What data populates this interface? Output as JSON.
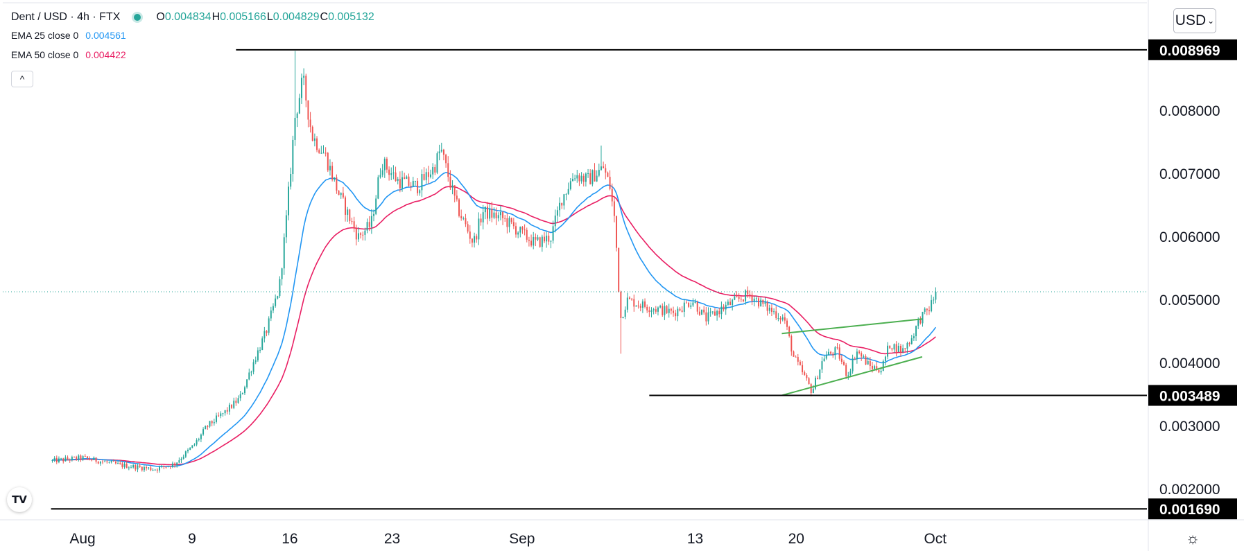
{
  "legend": {
    "symbol": "Dent / USD · 4h · FTX",
    "open_label": "O",
    "open": "0.004834",
    "high_label": "H",
    "high": "0.005166",
    "low_label": "L",
    "low": "0.004829",
    "close_label": "C",
    "close": "0.005132",
    "ema25_label": "EMA 25 close 0",
    "ema25_value": "0.004561",
    "ema50_label": "EMA 50 close 0",
    "ema50_value": "0.004422"
  },
  "toolbar": {
    "currency": "USD",
    "collapse_icon": "chevron-up-icon",
    "settings_icon": "gear-icon",
    "logo": "tradingview-logo"
  },
  "colors": {
    "up": "#26a69a",
    "down": "#ef5350",
    "ema25": "#2196f3",
    "ema50": "#e91e63",
    "trendline": "#4caf50",
    "level": "#000000"
  },
  "chart_data": {
    "type": "candlestick",
    "ylim": [
      0.0014,
      0.0097
    ],
    "y_ticks": [
      "0.008000",
      "0.007000",
      "0.006000",
      "0.005000",
      "0.004000",
      "0.003000",
      "0.002000"
    ],
    "x_ticks": [
      "Aug",
      "9",
      "16",
      "23",
      "Sep",
      "13",
      "20",
      "Oct"
    ],
    "last_price": 0.005132,
    "levels": [
      {
        "label": "0.008969",
        "value": 0.008969,
        "from_day": 11.7
      },
      {
        "label": "0.003489",
        "value": 0.003489,
        "from_day": 43.2
      },
      {
        "label": "0.001690",
        "value": 0.00169,
        "from_day": -2.4
      }
    ],
    "trendlines": [
      {
        "from": [
          53.3,
          0.00447
        ],
        "to": [
          64,
          0.0047
        ]
      },
      {
        "from": [
          53.3,
          0.003489
        ],
        "to": [
          64,
          0.0041
        ]
      }
    ],
    "anchors": [
      [
        -2.3,
        0.00245
      ],
      [
        0,
        0.0025
      ],
      [
        3,
        0.00238
      ],
      [
        5.5,
        0.00232
      ],
      [
        7,
        0.0024
      ],
      [
        8.5,
        0.0027
      ],
      [
        9.5,
        0.003
      ],
      [
        11,
        0.00325
      ],
      [
        12,
        0.00345
      ],
      [
        13,
        0.004
      ],
      [
        14,
        0.0045
      ],
      [
        15,
        0.0052
      ],
      [
        15.5,
        0.0062
      ],
      [
        16.2,
        0.0079
      ],
      [
        16.8,
        0.0085
      ],
      [
        17.5,
        0.0076
      ],
      [
        18.5,
        0.0073
      ],
      [
        19.5,
        0.0067
      ],
      [
        21,
        0.006
      ],
      [
        22,
        0.0062
      ],
      [
        22.8,
        0.0072
      ],
      [
        24,
        0.0069
      ],
      [
        25.5,
        0.0068
      ],
      [
        26.8,
        0.0071
      ],
      [
        27.3,
        0.0074
      ],
      [
        28.5,
        0.0065
      ],
      [
        29.8,
        0.0059
      ],
      [
        30.5,
        0.0064
      ],
      [
        32,
        0.0063
      ],
      [
        33.5,
        0.00605
      ],
      [
        34.5,
        0.0059
      ],
      [
        35.7,
        0.006
      ],
      [
        36.5,
        0.0066
      ],
      [
        37.5,
        0.007
      ],
      [
        38.5,
        0.0069
      ],
      [
        39.7,
        0.0071
      ],
      [
        40.2,
        0.0068
      ],
      [
        40.6,
        0.0062
      ],
      [
        41.0,
        0.0047
      ],
      [
        41.5,
        0.005
      ],
      [
        43,
        0.0049
      ],
      [
        45,
        0.0048
      ],
      [
        46.5,
        0.005
      ],
      [
        47.5,
        0.0047
      ],
      [
        49,
        0.0049
      ],
      [
        50.8,
        0.0051
      ],
      [
        52,
        0.0049
      ],
      [
        53.5,
        0.0047
      ],
      [
        54.2,
        0.0041
      ],
      [
        55,
        0.0038
      ],
      [
        55.6,
        0.00355
      ],
      [
        56.5,
        0.0041
      ],
      [
        57.5,
        0.0042
      ],
      [
        58.3,
        0.0038
      ],
      [
        59,
        0.0042
      ],
      [
        60,
        0.00395
      ],
      [
        60.9,
        0.0039
      ],
      [
        61.5,
        0.0043
      ],
      [
        62.5,
        0.0042
      ],
      [
        63.2,
        0.0044
      ],
      [
        63.8,
        0.0047
      ],
      [
        64.5,
        0.00485
      ],
      [
        65.1,
        0.00513
      ]
    ],
    "ema_note": "",
    "ema25_periods": 25,
    "ema50_periods": 50
  }
}
